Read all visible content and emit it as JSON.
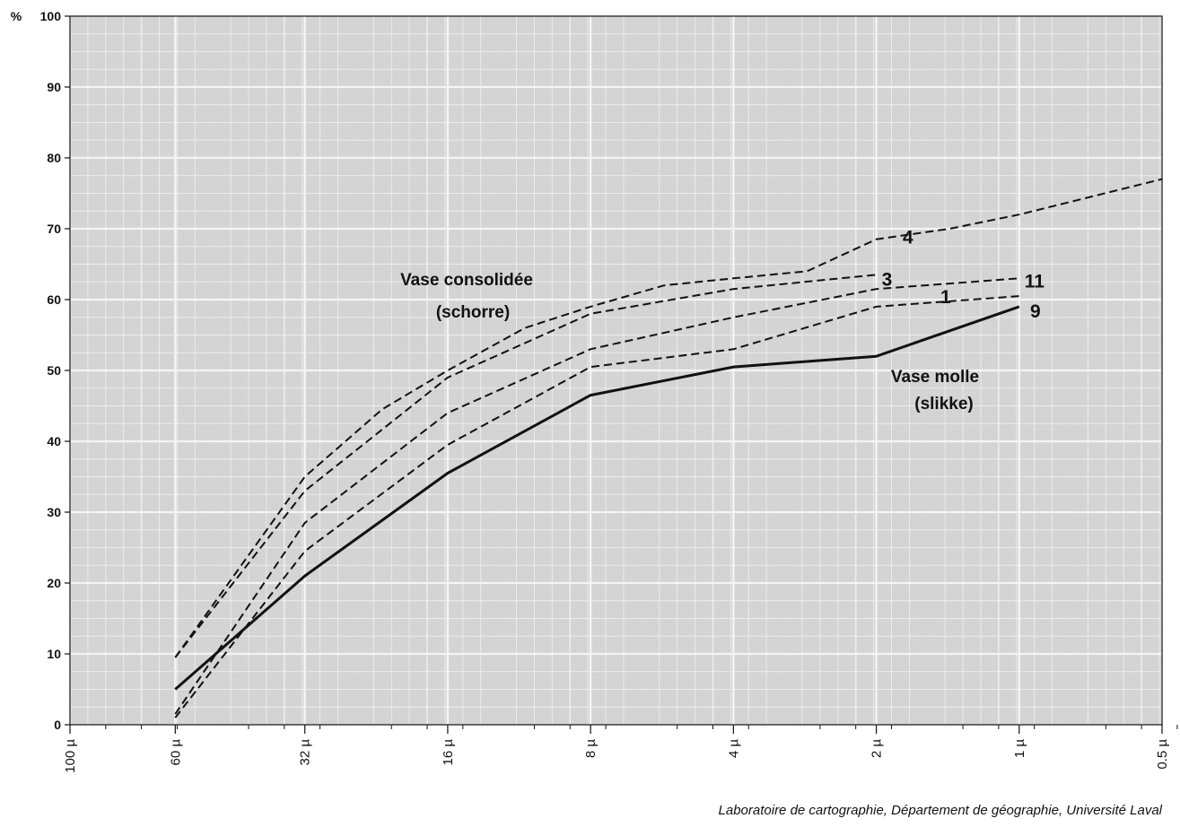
{
  "chart_data": {
    "type": "line",
    "ylabel": "%",
    "ylim": [
      0,
      100
    ],
    "y_ticks": [
      "0",
      "10",
      "20",
      "30",
      "40",
      "50",
      "60",
      "70",
      "80",
      "90",
      "100"
    ],
    "x_scale": "log2-reversed",
    "x_range_um": [
      100,
      0.5
    ],
    "x_ticks": [
      {
        "label": "100 µ",
        "value": 100
      },
      {
        "label": "60 µ",
        "value": 60
      },
      {
        "label": "32 µ",
        "value": 32
      },
      {
        "label": "16 µ",
        "value": 16
      },
      {
        "label": "8 µ",
        "value": 8
      },
      {
        "label": "4 µ",
        "value": 4
      },
      {
        "label": "2 µ",
        "value": 2
      },
      {
        "label": "1 µ",
        "value": 1
      },
      {
        "label": "0.5 µ",
        "value": 0.5
      }
    ],
    "grid": true,
    "series": [
      {
        "name": "4",
        "style": "dashed",
        "x": [
          60,
          32,
          22,
          16,
          11,
          8,
          5.6,
          4,
          2.8,
          2,
          1.4,
          1,
          0.5
        ],
        "y": [
          9.5,
          35,
          44.5,
          50,
          56,
          59,
          62,
          63,
          64,
          68.5,
          70,
          72,
          77
        ]
      },
      {
        "name": "3",
        "style": "dashed",
        "x": [
          60,
          32,
          16,
          8,
          4,
          2
        ],
        "y": [
          9.5,
          33,
          49,
          58,
          61.5,
          63.5
        ]
      },
      {
        "name": "11",
        "style": "dashed",
        "x": [
          60,
          32,
          16,
          8,
          4,
          2,
          1
        ],
        "y": [
          1.5,
          28.5,
          44,
          53,
          57.5,
          61.5,
          63
        ]
      },
      {
        "name": "1",
        "style": "dashed",
        "x": [
          60,
          32,
          16,
          8,
          4,
          2,
          1
        ],
        "y": [
          1,
          24.5,
          39.5,
          50.5,
          53,
          59,
          60.5
        ]
      },
      {
        "name": "9",
        "style": "solid",
        "x": [
          60,
          32,
          16,
          8,
          4,
          2,
          1
        ],
        "y": [
          5,
          21,
          35.5,
          46.5,
          50.5,
          52,
          59
        ]
      }
    ],
    "annotations": {
      "consolidated_line1": "Vase consolidée",
      "consolidated_line2": "(schorre)",
      "soft_line1": "Vase molle",
      "soft_line2": "(slikke)"
    },
    "credit": "Laboratoire de cartographie, Département de géographie, Université Laval",
    "colors": {
      "background": "#d6d6d6",
      "grid": "#f4f4f4",
      "line": "#111111"
    }
  }
}
